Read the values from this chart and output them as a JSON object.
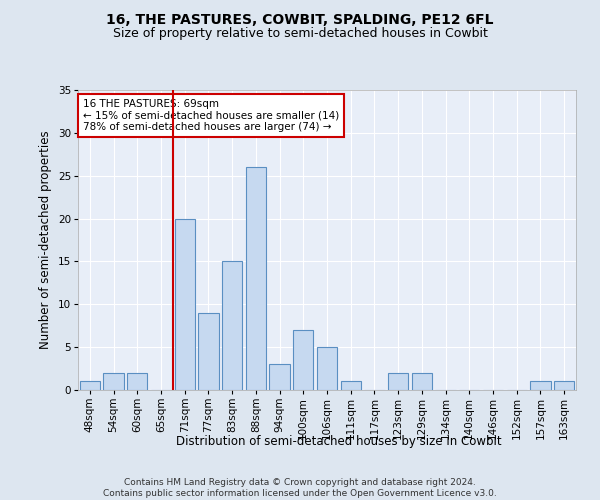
{
  "title": "16, THE PASTURES, COWBIT, SPALDING, PE12 6FL",
  "subtitle": "Size of property relative to semi-detached houses in Cowbit",
  "xlabel": "Distribution of semi-detached houses by size in Cowbit",
  "ylabel": "Number of semi-detached properties",
  "bin_labels": [
    "48sqm",
    "54sqm",
    "60sqm",
    "65sqm",
    "71sqm",
    "77sqm",
    "83sqm",
    "88sqm",
    "94sqm",
    "100sqm",
    "106sqm",
    "111sqm",
    "117sqm",
    "123sqm",
    "129sqm",
    "134sqm",
    "140sqm",
    "146sqm",
    "152sqm",
    "157sqm",
    "163sqm"
  ],
  "bar_values": [
    1,
    2,
    2,
    0,
    20,
    9,
    15,
    26,
    3,
    7,
    5,
    1,
    0,
    2,
    2,
    0,
    0,
    0,
    0,
    1,
    1
  ],
  "bar_color": "#c6d9f0",
  "bar_edge_color": "#5a8fc2",
  "subject_bin_index": 4,
  "subject_line_color": "#cc0000",
  "annotation_text": "16 THE PASTURES: 69sqm\n← 15% of semi-detached houses are smaller (14)\n78% of semi-detached houses are larger (74) →",
  "annotation_box_color": "#ffffff",
  "annotation_box_edge": "#cc0000",
  "ylim": [
    0,
    35
  ],
  "yticks": [
    0,
    5,
    10,
    15,
    20,
    25,
    30,
    35
  ],
  "footer_line1": "Contains HM Land Registry data © Crown copyright and database right 2024.",
  "footer_line2": "Contains public sector information licensed under the Open Government Licence v3.0.",
  "background_color": "#dde6f0",
  "plot_bg_color": "#e8eef8",
  "grid_color": "#ffffff",
  "title_fontsize": 10,
  "subtitle_fontsize": 9,
  "xlabel_fontsize": 8.5,
  "ylabel_fontsize": 8.5,
  "tick_fontsize": 7.5,
  "annotation_fontsize": 7.5,
  "footer_fontsize": 6.5
}
